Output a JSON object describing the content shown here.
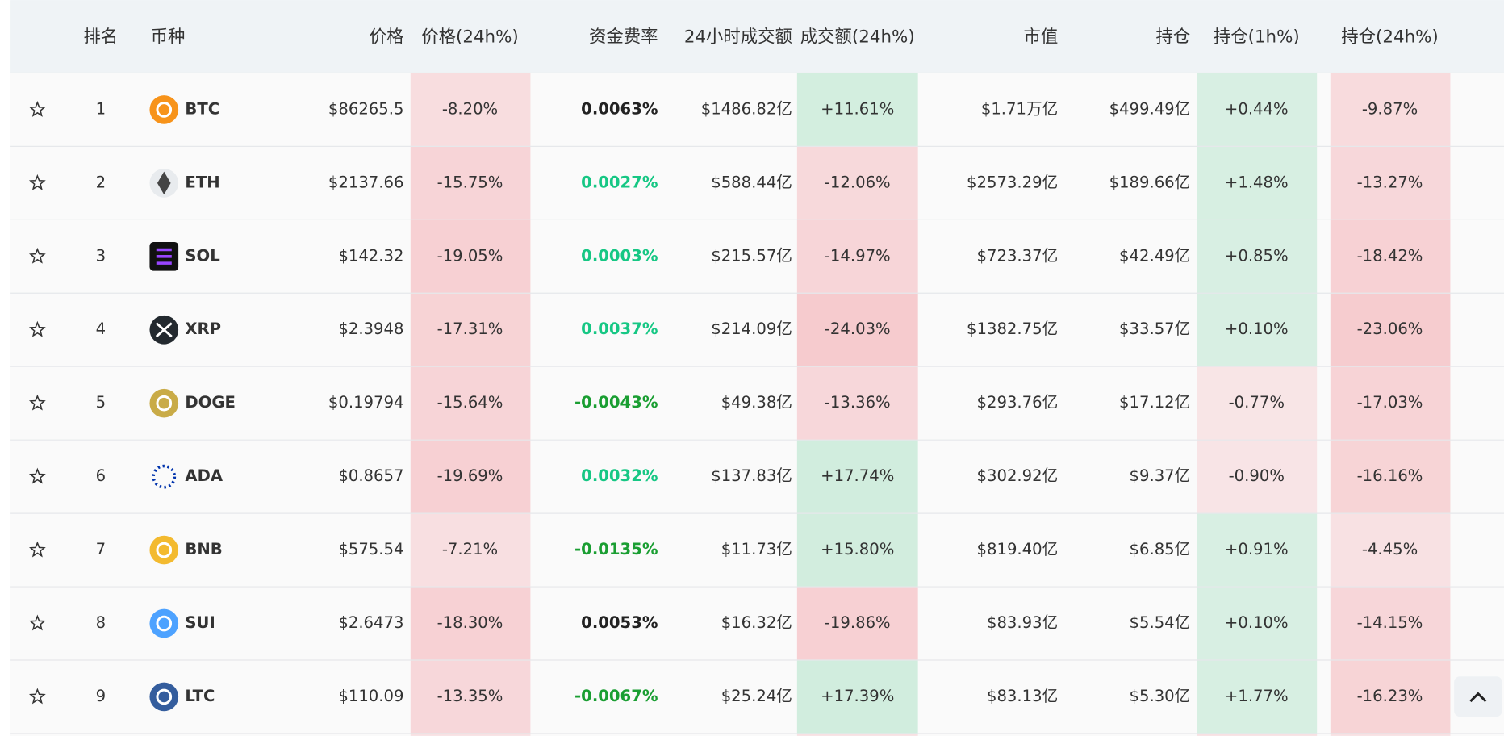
{
  "table": {
    "headers": [
      "排名",
      "币种",
      "价格",
      "价格(24h%)",
      "资金费率",
      "24小时成交额",
      "成交额(24h%)",
      "市值",
      "持仓",
      "持仓(1h%)",
      "持仓(24h%)"
    ],
    "rows": [
      {
        "rank": 1,
        "coin": "BTC",
        "icon_color": "#f7931a",
        "price": "$86265.5",
        "price_change": "-8.20%",
        "funding": "0.0063%",
        "funding_color": "#222222",
        "volume": "$1486.82亿",
        "volume_change": "+11.61%",
        "market_cap": "$1.71万亿",
        "open_interest": "$499.49亿",
        "oi_change_1h": "+0.44%",
        "oi_change_24h": "-9.87%"
      },
      {
        "rank": 2,
        "coin": "ETH",
        "icon_color": "#e8ebee",
        "price": "$2137.66",
        "price_change": "-15.75%",
        "funding": "0.0027%",
        "funding_color": "#16c784",
        "volume": "$588.44亿",
        "volume_change": "-12.06%",
        "market_cap": "$2573.29亿",
        "open_interest": "$189.66亿",
        "oi_change_1h": "+1.48%",
        "oi_change_24h": "-13.27%"
      },
      {
        "rank": 3,
        "coin": "SOL",
        "icon_color": "#111111",
        "price": "$142.32",
        "price_change": "-19.05%",
        "funding": "0.0003%",
        "funding_color": "#16c784",
        "volume": "$215.57亿",
        "volume_change": "-14.97%",
        "market_cap": "$723.37亿",
        "open_interest": "$42.49亿",
        "oi_change_1h": "+0.85%",
        "oi_change_24h": "-18.42%"
      },
      {
        "rank": 4,
        "coin": "XRP",
        "icon_color": "#23292f",
        "price": "$2.3948",
        "price_change": "-17.31%",
        "funding": "0.0037%",
        "funding_color": "#16c784",
        "volume": "$214.09亿",
        "volume_change": "-24.03%",
        "market_cap": "$1382.75亿",
        "open_interest": "$33.57亿",
        "oi_change_1h": "+0.10%",
        "oi_change_24h": "-23.06%"
      },
      {
        "rank": 5,
        "coin": "DOGE",
        "icon_color": "#c9ab47",
        "price": "$0.19794",
        "price_change": "-15.64%",
        "funding": "-0.0043%",
        "funding_color": "#1a9e32",
        "volume": "$49.38亿",
        "volume_change": "-13.36%",
        "market_cap": "$293.76亿",
        "open_interest": "$17.12亿",
        "oi_change_1h": "-0.77%",
        "oi_change_24h": "-17.03%"
      },
      {
        "rank": 6,
        "coin": "ADA",
        "icon_color": "#0033ad",
        "price": "$0.8657",
        "price_change": "-19.69%",
        "funding": "0.0032%",
        "funding_color": "#16c784",
        "volume": "$137.83亿",
        "volume_change": "+17.74%",
        "market_cap": "$302.92亿",
        "open_interest": "$9.37亿",
        "oi_change_1h": "-0.90%",
        "oi_change_24h": "-16.16%"
      },
      {
        "rank": 7,
        "coin": "BNB",
        "icon_color": "#f3ba2f",
        "price": "$575.54",
        "price_change": "-7.21%",
        "funding": "-0.0135%",
        "funding_color": "#1a9e32",
        "volume": "$11.73亿",
        "volume_change": "+15.80%",
        "market_cap": "$819.40亿",
        "open_interest": "$6.85亿",
        "oi_change_1h": "+0.91%",
        "oi_change_24h": "-4.45%"
      },
      {
        "rank": 8,
        "coin": "SUI",
        "icon_color": "#4da2ff",
        "price": "$2.6473",
        "price_change": "-18.30%",
        "funding": "0.0053%",
        "funding_color": "#222222",
        "volume": "$16.32亿",
        "volume_change": "-19.86%",
        "market_cap": "$83.93亿",
        "open_interest": "$5.54亿",
        "oi_change_1h": "+0.10%",
        "oi_change_24h": "-14.15%"
      },
      {
        "rank": 9,
        "coin": "LTC",
        "icon_color": "#345d9d",
        "price": "$110.09",
        "price_change": "-13.35%",
        "funding": "-0.0067%",
        "funding_color": "#1a9e32",
        "volume": "$25.24亿",
        "volume_change": "+17.39%",
        "market_cap": "$83.13亿",
        "open_interest": "$5.30亿",
        "oi_change_1h": "+1.77%",
        "oi_change_24h": "-16.23%"
      }
    ]
  }
}
